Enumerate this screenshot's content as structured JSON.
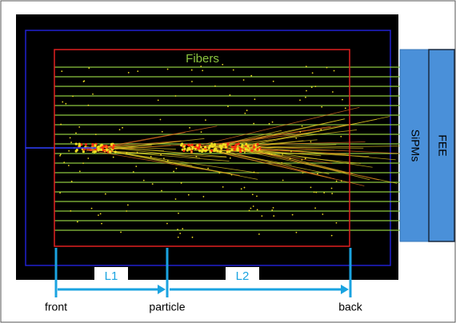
{
  "labels": {
    "fibers": "Fibers",
    "sipms": "SiPMs",
    "fee": "FEE",
    "l1": "L1",
    "l2": "L2",
    "front": "front",
    "particle": "particle",
    "back": "back"
  }
}
